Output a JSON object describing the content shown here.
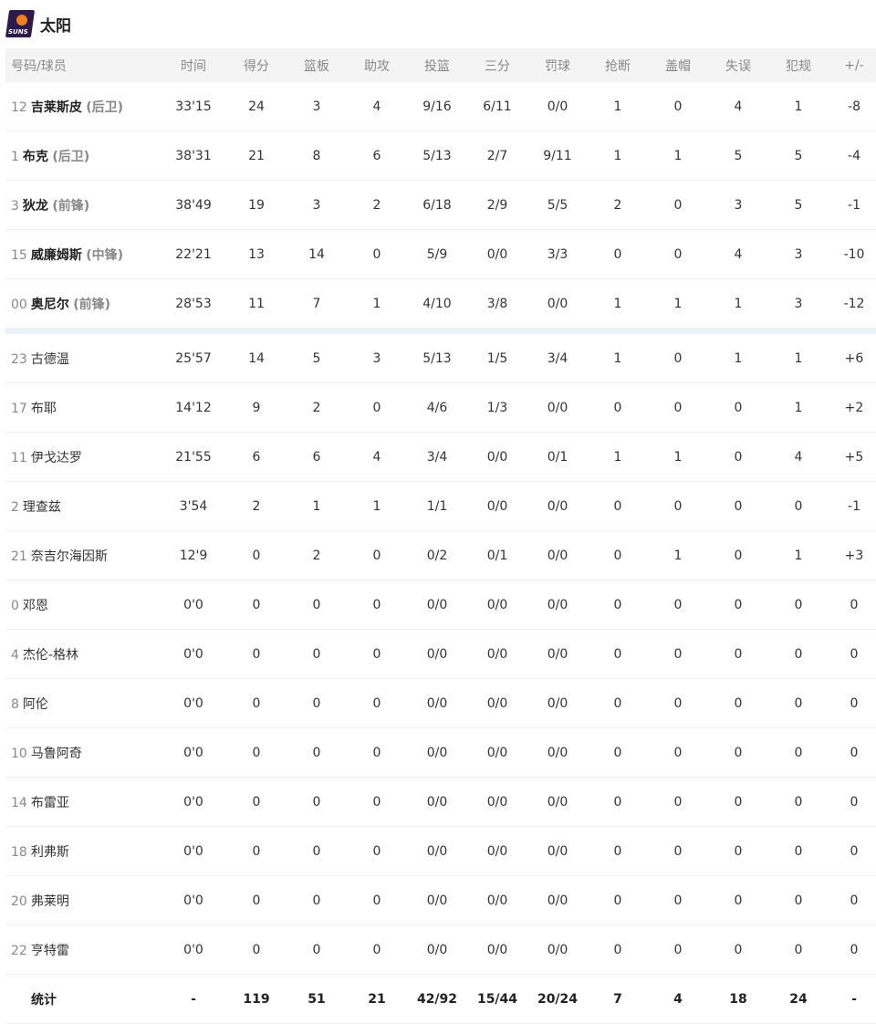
{
  "team": {
    "name": "太阳",
    "logo_text": "SUNS"
  },
  "columns": [
    "号码/球员",
    "时间",
    "得分",
    "篮板",
    "助攻",
    "投篮",
    "三分",
    "罚球",
    "抢断",
    "盖帽",
    "失误",
    "犯规",
    "+/-"
  ],
  "starters": [
    {
      "num": "12",
      "name": "吉莱斯皮",
      "pos": "(后卫)",
      "stats": [
        "33'15",
        "24",
        "3",
        "4",
        "9/16",
        "6/11",
        "0/0",
        "1",
        "0",
        "4",
        "1",
        "-8"
      ]
    },
    {
      "num": "1",
      "name": "布克",
      "pos": "(后卫)",
      "stats": [
        "38'31",
        "21",
        "8",
        "6",
        "5/13",
        "2/7",
        "9/11",
        "1",
        "1",
        "5",
        "5",
        "-4"
      ]
    },
    {
      "num": "3",
      "name": "狄龙",
      "pos": "(前锋)",
      "stats": [
        "38'49",
        "19",
        "3",
        "2",
        "6/18",
        "2/9",
        "5/5",
        "2",
        "0",
        "3",
        "5",
        "-1"
      ]
    },
    {
      "num": "15",
      "name": "威廉姆斯",
      "pos": "(中锋)",
      "stats": [
        "22'21",
        "13",
        "14",
        "0",
        "5/9",
        "0/0",
        "3/3",
        "0",
        "0",
        "4",
        "3",
        "-10"
      ]
    },
    {
      "num": "00",
      "name": "奥尼尔",
      "pos": "(前锋)",
      "stats": [
        "28'53",
        "11",
        "7",
        "1",
        "4/10",
        "3/8",
        "0/0",
        "1",
        "1",
        "1",
        "3",
        "-12"
      ]
    }
  ],
  "bench": [
    {
      "num": "23",
      "name": "古德温",
      "stats": [
        "25'57",
        "14",
        "5",
        "3",
        "5/13",
        "1/5",
        "3/4",
        "1",
        "0",
        "1",
        "1",
        "+6"
      ]
    },
    {
      "num": "17",
      "name": "布耶",
      "stats": [
        "14'12",
        "9",
        "2",
        "0",
        "4/6",
        "1/3",
        "0/0",
        "0",
        "0",
        "0",
        "1",
        "+2"
      ]
    },
    {
      "num": "11",
      "name": "伊戈达罗",
      "stats": [
        "21'55",
        "6",
        "6",
        "4",
        "3/4",
        "0/0",
        "0/1",
        "1",
        "1",
        "0",
        "4",
        "+5"
      ]
    },
    {
      "num": "2",
      "name": "理查兹",
      "stats": [
        "3'54",
        "2",
        "1",
        "1",
        "1/1",
        "0/0",
        "0/0",
        "0",
        "0",
        "0",
        "0",
        "-1"
      ]
    },
    {
      "num": "21",
      "name": "奈吉尔海因斯",
      "stats": [
        "12'9",
        "0",
        "2",
        "0",
        "0/2",
        "0/1",
        "0/0",
        "0",
        "1",
        "0",
        "1",
        "+3"
      ]
    },
    {
      "num": "0",
      "name": "邓恩",
      "stats": [
        "0'0",
        "0",
        "0",
        "0",
        "0/0",
        "0/0",
        "0/0",
        "0",
        "0",
        "0",
        "0",
        "0"
      ]
    },
    {
      "num": "4",
      "name": "杰伦-格林",
      "stats": [
        "0'0",
        "0",
        "0",
        "0",
        "0/0",
        "0/0",
        "0/0",
        "0",
        "0",
        "0",
        "0",
        "0"
      ]
    },
    {
      "num": "8",
      "name": "阿伦",
      "stats": [
        "0'0",
        "0",
        "0",
        "0",
        "0/0",
        "0/0",
        "0/0",
        "0",
        "0",
        "0",
        "0",
        "0"
      ]
    },
    {
      "num": "10",
      "name": "马鲁阿奇",
      "stats": [
        "0'0",
        "0",
        "0",
        "0",
        "0/0",
        "0/0",
        "0/0",
        "0",
        "0",
        "0",
        "0",
        "0"
      ]
    },
    {
      "num": "14",
      "name": "布雷亚",
      "stats": [
        "0'0",
        "0",
        "0",
        "0",
        "0/0",
        "0/0",
        "0/0",
        "0",
        "0",
        "0",
        "0",
        "0"
      ]
    },
    {
      "num": "18",
      "name": "利弗斯",
      "stats": [
        "0'0",
        "0",
        "0",
        "0",
        "0/0",
        "0/0",
        "0/0",
        "0",
        "0",
        "0",
        "0",
        "0"
      ]
    },
    {
      "num": "20",
      "name": "弗莱明",
      "stats": [
        "0'0",
        "0",
        "0",
        "0",
        "0/0",
        "0/0",
        "0/0",
        "0",
        "0",
        "0",
        "0",
        "0"
      ]
    },
    {
      "num": "22",
      "name": "亨特雷",
      "stats": [
        "0'0",
        "0",
        "0",
        "0",
        "0/0",
        "0/0",
        "0/0",
        "0",
        "0",
        "0",
        "0",
        "0"
      ]
    }
  ],
  "totals": {
    "label": "统计",
    "stats": [
      "-",
      "119",
      "51",
      "21",
      "42/92",
      "15/44",
      "20/24",
      "7",
      "4",
      "18",
      "24",
      "-"
    ]
  }
}
